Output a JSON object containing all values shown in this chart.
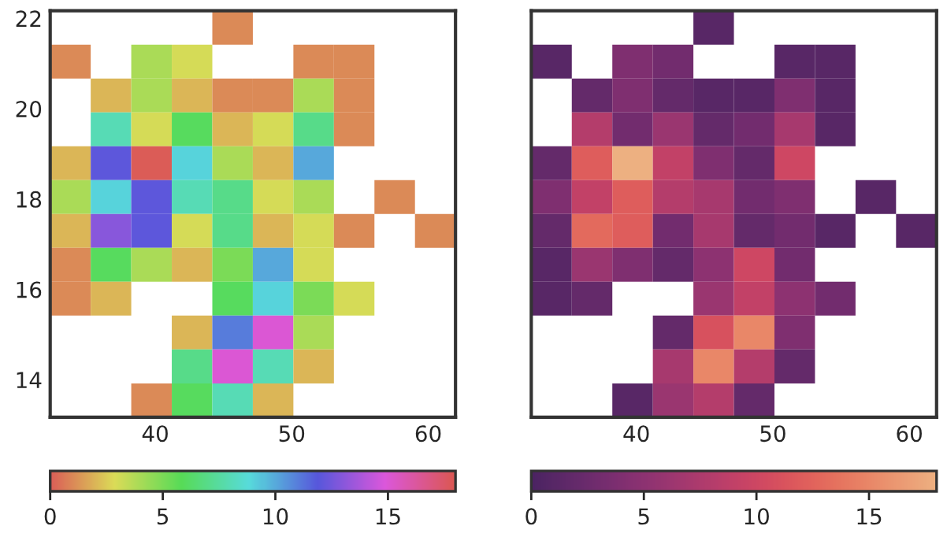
{
  "chart_data": [
    {
      "type": "heatmap",
      "cells": [
        [
          null,
          null,
          null,
          null,
          1,
          null,
          null,
          null,
          null,
          null
        ],
        [
          1,
          null,
          4,
          3,
          null,
          null,
          1,
          1,
          null,
          null
        ],
        [
          null,
          2,
          4,
          2,
          1,
          1,
          4,
          1,
          null,
          null
        ],
        [
          null,
          8,
          3,
          6,
          2,
          3,
          7,
          1,
          null,
          null
        ],
        [
          2,
          12,
          18,
          9,
          4,
          2,
          10,
          null,
          null,
          null
        ],
        [
          4,
          9,
          12,
          8,
          7,
          3,
          4,
          null,
          1,
          null
        ],
        [
          2,
          13,
          12,
          3,
          7,
          2,
          3,
          1,
          null,
          1
        ],
        [
          1,
          6,
          4,
          2,
          5,
          10,
          3,
          null,
          null,
          null
        ],
        [
          1,
          2,
          null,
          null,
          6,
          9,
          5,
          3,
          null,
          null
        ],
        [
          null,
          null,
          null,
          2,
          11,
          15,
          4,
          null,
          null,
          null
        ],
        [
          null,
          null,
          null,
          7,
          15,
          8,
          2,
          null,
          null,
          null
        ],
        [
          null,
          null,
          1,
          6,
          8,
          2,
          null,
          null,
          null,
          null
        ]
      ],
      "xlim": [
        32.3,
        62.0
      ],
      "ylim": [
        13.17,
        22.17
      ],
      "xticks": [
        40,
        50,
        60
      ],
      "yticks": [
        14,
        16,
        18,
        20,
        22
      ],
      "clim": [
        0,
        18
      ],
      "cticks": [
        0,
        5,
        10,
        15
      ]
    },
    {
      "type": "heatmap",
      "cells": [
        [
          null,
          null,
          null,
          null,
          1,
          null,
          null,
          null,
          null,
          null
        ],
        [
          1,
          null,
          4,
          3,
          null,
          null,
          1,
          1,
          null,
          null
        ],
        [
          null,
          2,
          4,
          2,
          1,
          1,
          4,
          1,
          null,
          null
        ],
        [
          null,
          8,
          3,
          6,
          2,
          3,
          7,
          1,
          null,
          null
        ],
        [
          2,
          12,
          18,
          9,
          4,
          2,
          10,
          null,
          null,
          null
        ],
        [
          4,
          9,
          12,
          8,
          7,
          3,
          4,
          null,
          1,
          null
        ],
        [
          2,
          13,
          12,
          3,
          7,
          2,
          3,
          1,
          null,
          1
        ],
        [
          1,
          6,
          4,
          2,
          5,
          10,
          3,
          null,
          null,
          null
        ],
        [
          1,
          2,
          null,
          null,
          6,
          9,
          5,
          3,
          null,
          null
        ],
        [
          null,
          null,
          null,
          2,
          11,
          15,
          4,
          null,
          null,
          null
        ],
        [
          null,
          null,
          null,
          7,
          15,
          8,
          2,
          null,
          null,
          null
        ],
        [
          null,
          null,
          1,
          6,
          8,
          2,
          null,
          null,
          null,
          null
        ]
      ],
      "xlim": [
        32.3,
        62.0
      ],
      "ylim": [
        13.17,
        22.17
      ],
      "xticks": [
        40,
        50,
        60
      ],
      "yticks": [
        14,
        16,
        18,
        20,
        22
      ],
      "tick_labels": "x",
      "clim": [
        0,
        18
      ],
      "cticks": [
        0,
        5,
        10,
        15
      ]
    }
  ]
}
